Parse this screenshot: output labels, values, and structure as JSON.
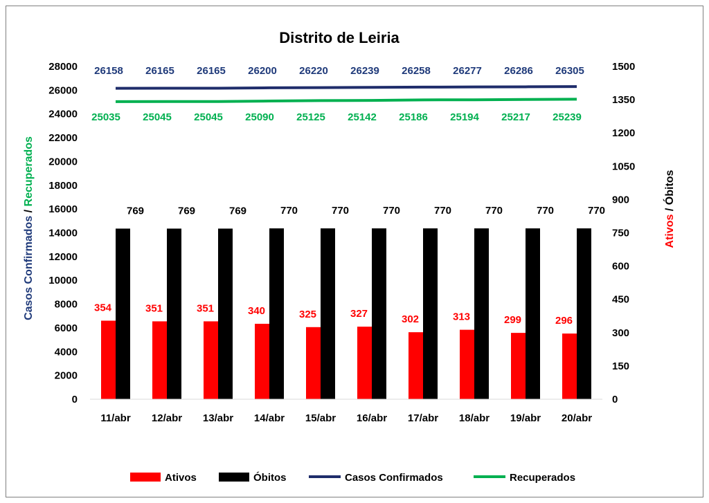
{
  "chart_data": {
    "type": "bar",
    "title": "Distrito de Leiria",
    "categories": [
      "11/abr",
      "12/abr",
      "13/abr",
      "14/abr",
      "15/abr",
      "16/abr",
      "17/abr",
      "18/abr",
      "19/abr",
      "20/abr"
    ],
    "y_left": {
      "title_part1": "Casos Confirmados",
      "title_sep": " / ",
      "title_part2": "Recuperados",
      "title_part1_color": "#1f3a7a",
      "title_part2_color": "#00b050",
      "range": [
        0,
        28000
      ],
      "ticks": [
        0,
        2000,
        4000,
        6000,
        8000,
        10000,
        12000,
        14000,
        16000,
        18000,
        20000,
        22000,
        24000,
        26000,
        28000
      ]
    },
    "y_right": {
      "title_part1": "Ativos",
      "title_sep": " / ",
      "title_part2": "Óbitos",
      "title_part1_color": "#ff0000",
      "title_part2_color": "#000000",
      "range": [
        0,
        1500
      ],
      "ticks": [
        0,
        150,
        300,
        450,
        600,
        750,
        900,
        1050,
        1200,
        1350,
        1500
      ]
    },
    "series": [
      {
        "name": "Ativos",
        "kind": "bar",
        "axis": "right",
        "color": "#ff0000",
        "label_color": "#ff0000",
        "values": [
          354,
          351,
          351,
          340,
          325,
          327,
          302,
          313,
          299,
          296
        ]
      },
      {
        "name": "Óbitos",
        "kind": "bar",
        "axis": "right",
        "color": "#000000",
        "label_color": "#000000",
        "values": [
          769,
          769,
          769,
          770,
          770,
          770,
          770,
          770,
          770,
          770
        ]
      },
      {
        "name": "Casos Confirmados",
        "kind": "line",
        "axis": "left",
        "color": "#1f2d6b",
        "label_color": "#1f3a7a",
        "values": [
          26158,
          26165,
          26165,
          26200,
          26220,
          26239,
          26258,
          26277,
          26286,
          26305
        ]
      },
      {
        "name": "Recuperados",
        "kind": "line",
        "axis": "left",
        "color": "#00b050",
        "label_color": "#00b050",
        "values": [
          25035,
          25045,
          25045,
          25090,
          25125,
          25142,
          25186,
          25194,
          25217,
          25239
        ]
      }
    ],
    "legend_position": "bottom",
    "grid": false
  }
}
